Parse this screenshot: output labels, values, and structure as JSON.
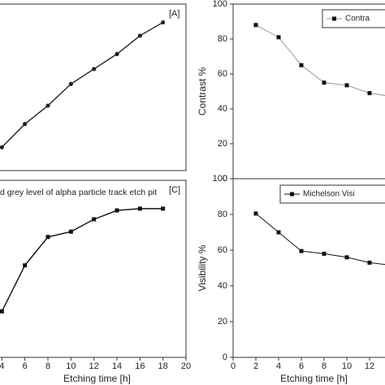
{
  "chart_data": [
    {
      "type": "line",
      "annotation": "[A]",
      "x": [
        4,
        6,
        8,
        10,
        12,
        14,
        16,
        18
      ],
      "values": [
        14,
        28,
        39,
        52,
        61,
        70,
        81,
        89
      ],
      "xlim": [
        2,
        20
      ],
      "ylim": [
        0,
        100
      ],
      "color": "#222222",
      "marker": "circle"
    },
    {
      "type": "line",
      "ylabel": "Contrast %",
      "series": [
        {
          "name": "Contra",
          "color": "#999999",
          "marker_color": "#111111",
          "x": [
            2,
            4,
            6,
            8,
            10,
            12,
            14
          ],
          "values": [
            88,
            81,
            65,
            55,
            53.5,
            49,
            47
          ]
        }
      ],
      "xlim": [
        0,
        14
      ],
      "ylim": [
        0,
        100
      ],
      "yticks": [
        0,
        20,
        40,
        60,
        80,
        100
      ],
      "marker": "square"
    },
    {
      "type": "line",
      "annotation": "[C]",
      "title": "d grey level of alpha particle track etch pit",
      "xlabel": "Etching time [h]",
      "x": [
        4,
        6,
        8,
        10,
        12,
        14,
        16,
        18
      ],
      "values": [
        26,
        52,
        68,
        71,
        78,
        83,
        84,
        84
      ],
      "xlim": [
        2,
        20
      ],
      "ylim": [
        0,
        100
      ],
      "xticks": [
        4,
        6,
        8,
        10,
        12,
        14,
        16,
        18,
        20
      ],
      "color": "#111111",
      "marker": "square"
    },
    {
      "type": "line",
      "ylabel": "Visibility %",
      "xlabel": "Etching time [h]",
      "series": [
        {
          "name": "Michelson Visi",
          "color": "#111111",
          "marker_color": "#111111",
          "x": [
            2,
            4,
            6,
            8,
            10,
            12,
            14
          ],
          "values": [
            80.5,
            70,
            59.5,
            58,
            56,
            53,
            51.5
          ]
        }
      ],
      "xlim": [
        0,
        14
      ],
      "ylim": [
        0,
        100
      ],
      "xticks": [
        0,
        2,
        4,
        6,
        8,
        10,
        12
      ],
      "yticks": [
        0,
        20,
        40,
        60,
        80,
        100
      ],
      "marker": "square"
    }
  ]
}
